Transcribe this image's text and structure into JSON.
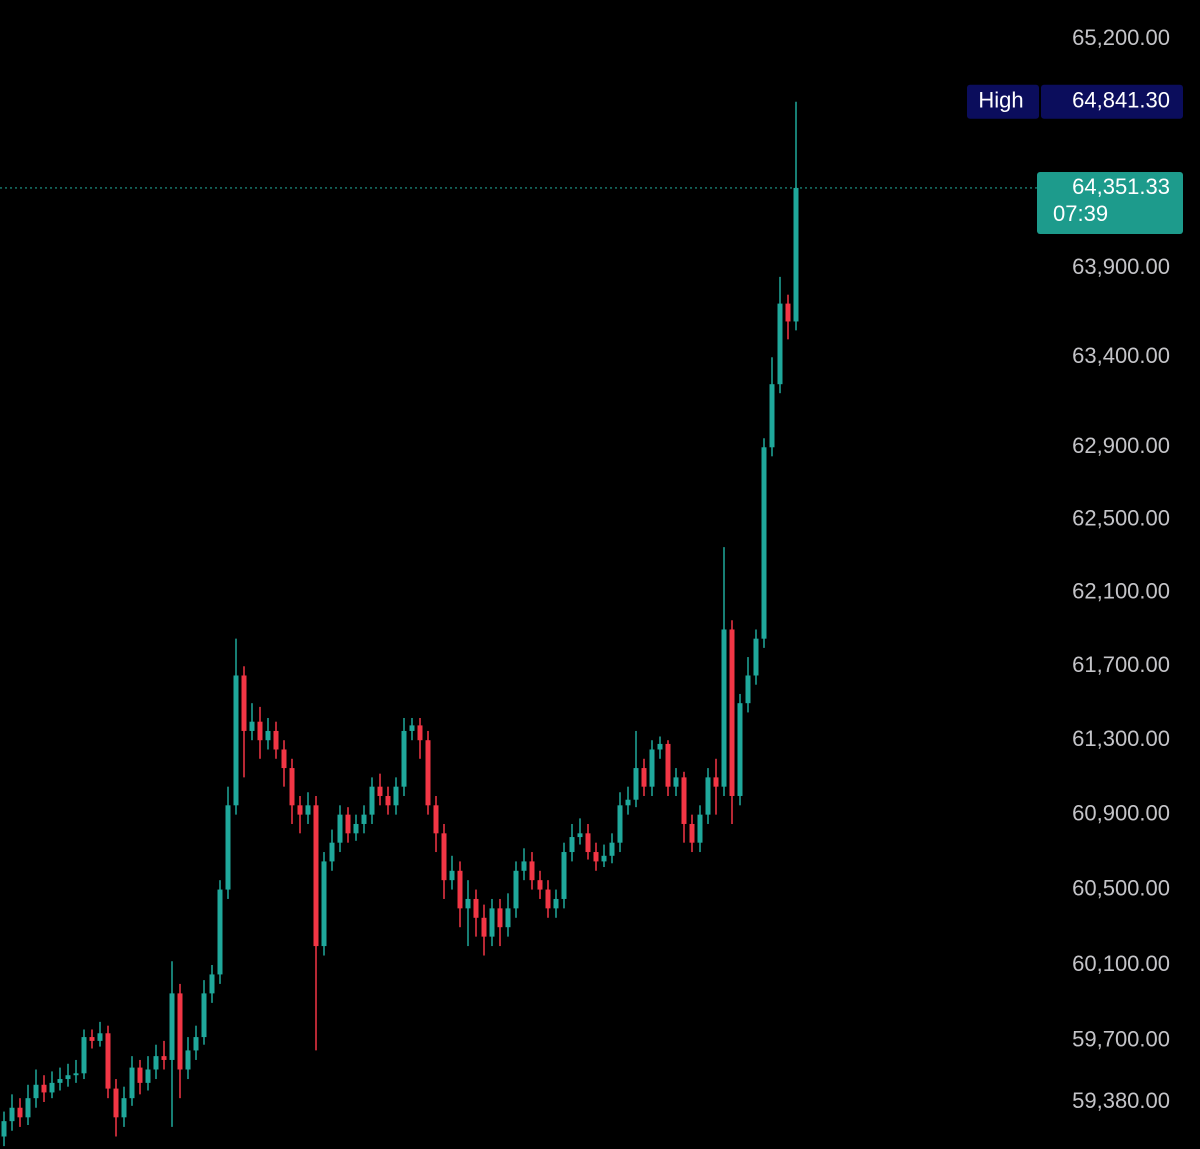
{
  "chart_data": {
    "type": "candlestick",
    "log_scale": true,
    "grid": false,
    "up_color": "#1fa89b",
    "down_color": "#f23645",
    "ylim": [
      59135,
      65424
    ],
    "yticks": [
      {
        "value": 65200,
        "label": "65,200.00"
      },
      {
        "value": 63900,
        "label": "63,900.00"
      },
      {
        "value": 63400,
        "label": "63,400.00"
      },
      {
        "value": 62900,
        "label": "62,900.00"
      },
      {
        "value": 62500,
        "label": "62,500.00"
      },
      {
        "value": 62100,
        "label": "62,100.00"
      },
      {
        "value": 61700,
        "label": "61,700.00"
      },
      {
        "value": 61300,
        "label": "61,300.00"
      },
      {
        "value": 60900,
        "label": "60,900.00"
      },
      {
        "value": 60500,
        "label": "60,500.00"
      },
      {
        "value": 60100,
        "label": "60,100.00"
      },
      {
        "value": 59700,
        "label": "59,700.00"
      },
      {
        "value": 59380,
        "label": "59,380.00"
      }
    ],
    "open": [
      59200,
      59280,
      59350,
      59300,
      59400,
      59470,
      59430,
      59480,
      59500,
      59520,
      59530,
      59720,
      59700,
      59740,
      59450,
      59300,
      59400,
      59560,
      59480,
      59550,
      59620,
      59600,
      59950,
      59550,
      59650,
      59720,
      59950,
      60050,
      60500,
      60950,
      61650,
      61350,
      61400,
      61300,
      61350,
      61250,
      61150,
      60950,
      60900,
      60950,
      60200,
      60650,
      60750,
      60900,
      60800,
      60850,
      60900,
      61050,
      61000,
      60950,
      61050,
      61350,
      61380,
      61300,
      60950,
      60800,
      60550,
      60600,
      60400,
      60450,
      60350,
      60250,
      60400,
      60300,
      60400,
      60600,
      60650,
      60550,
      60500,
      60400,
      60450,
      60700,
      60780,
      60800,
      60700,
      60650,
      60680,
      60750,
      60950,
      60980,
      61150,
      61050,
      61250,
      61280,
      61050,
      61100,
      60850,
      60750,
      60900,
      61100,
      61050,
      61900,
      61000,
      61500,
      61650,
      61850,
      62900,
      63250,
      63700,
      63600
    ],
    "high": [
      59330,
      59420,
      59400,
      59470,
      59550,
      59520,
      59540,
      59560,
      59580,
      59600,
      59760,
      59760,
      59800,
      59780,
      59500,
      59460,
      59620,
      59600,
      59620,
      59680,
      59700,
      60120,
      60000,
      59720,
      59780,
      60020,
      60100,
      60550,
      61050,
      61850,
      61700,
      61500,
      61480,
      61420,
      61400,
      61300,
      61200,
      61000,
      61020,
      61000,
      60700,
      60820,
      60950,
      60940,
      60900,
      60950,
      61100,
      61120,
      61050,
      61100,
      61420,
      61420,
      61420,
      61350,
      61000,
      60850,
      60680,
      60650,
      60550,
      60500,
      60420,
      60450,
      60450,
      60480,
      60650,
      60720,
      60700,
      60600,
      60550,
      60500,
      60750,
      60850,
      60880,
      60850,
      60750,
      60740,
      60800,
      61020,
      61050,
      61350,
      61200,
      61300,
      61320,
      61300,
      61150,
      61130,
      60900,
      60950,
      61150,
      61200,
      62350,
      61950,
      61550,
      61750,
      61900,
      62950,
      63400,
      63850,
      63750,
      64841.3
    ],
    "low": [
      59150,
      59230,
      59250,
      59260,
      59350,
      59380,
      59400,
      59440,
      59460,
      59480,
      59500,
      59660,
      59670,
      59400,
      59200,
      59250,
      59360,
      59420,
      59440,
      59500,
      59550,
      59250,
      59400,
      59500,
      59600,
      59680,
      59900,
      60000,
      60450,
      60900,
      61100,
      61300,
      61200,
      61250,
      61200,
      61050,
      60850,
      60800,
      60850,
      59650,
      60150,
      60600,
      60700,
      60750,
      60760,
      60800,
      60850,
      60950,
      60900,
      60900,
      61000,
      61300,
      61200,
      60900,
      60700,
      60450,
      60500,
      60300,
      60200,
      60250,
      60150,
      60200,
      60200,
      60250,
      60350,
      60550,
      60500,
      60450,
      60350,
      60350,
      60400,
      60650,
      60740,
      60660,
      60600,
      60620,
      60640,
      60700,
      60900,
      60940,
      61000,
      61000,
      61200,
      61000,
      61000,
      60750,
      60700,
      60700,
      60850,
      60900,
      61000,
      60850,
      60950,
      61450,
      61600,
      61800,
      62850,
      63200,
      63500,
      63550
    ],
    "close": [
      59280,
      59350,
      59300,
      59400,
      59470,
      59430,
      59480,
      59500,
      59520,
      59530,
      59720,
      59700,
      59740,
      59450,
      59300,
      59400,
      59560,
      59480,
      59550,
      59620,
      59600,
      59950,
      59550,
      59650,
      59720,
      59950,
      60050,
      60500,
      60950,
      61650,
      61350,
      61400,
      61300,
      61350,
      61250,
      61150,
      60950,
      60900,
      60950,
      60200,
      60650,
      60750,
      60900,
      60800,
      60850,
      60900,
      61050,
      61000,
      60950,
      61050,
      61350,
      61380,
      61300,
      60950,
      60800,
      60550,
      60600,
      60400,
      60450,
      60350,
      60250,
      60400,
      60300,
      60400,
      60600,
      60650,
      60550,
      60500,
      60400,
      60450,
      60700,
      60780,
      60800,
      60700,
      60650,
      60680,
      60750,
      60950,
      60980,
      61150,
      61050,
      61250,
      61280,
      61050,
      61100,
      60850,
      60750,
      60900,
      61100,
      61050,
      61900,
      61000,
      61500,
      61650,
      61850,
      62900,
      63250,
      63700,
      63600,
      64351.33
    ],
    "high_marker": {
      "label": "High",
      "value": 64841.3,
      "value_label": "64,841.30",
      "color": "#0b0d5c"
    },
    "last_price": {
      "value": 64351.33,
      "value_label": "64,351.33",
      "countdown": "07:39",
      "color": "#1d9b8c"
    }
  }
}
